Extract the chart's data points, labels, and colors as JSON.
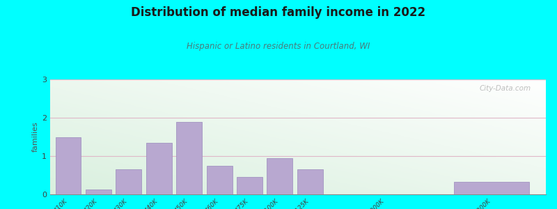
{
  "title": "Distribution of median family income in 2022",
  "subtitle": "Hispanic or Latino residents in Courtland, WI",
  "ylabel": "families",
  "background_outer": "#00FFFF",
  "bar_color": "#b8a8d0",
  "bar_edge_color": "#9a8abc",
  "categories": [
    "$10K",
    "$20K",
    "$30K",
    "$40K",
    "$50K",
    "$60K",
    "$75K",
    "$100K",
    "$125K",
    "$200K",
    "> $200K"
  ],
  "values": [
    1.5,
    0.13,
    0.65,
    1.35,
    1.9,
    0.75,
    0.45,
    0.95,
    0.65,
    0.0,
    0.32
  ],
  "ylim": [
    0,
    3
  ],
  "yticks": [
    0,
    1,
    2,
    3
  ],
  "watermark": "City-Data.com",
  "title_color": "#1a1a1a",
  "subtitle_color": "#4a7a7a",
  "ylabel_color": "#555555"
}
